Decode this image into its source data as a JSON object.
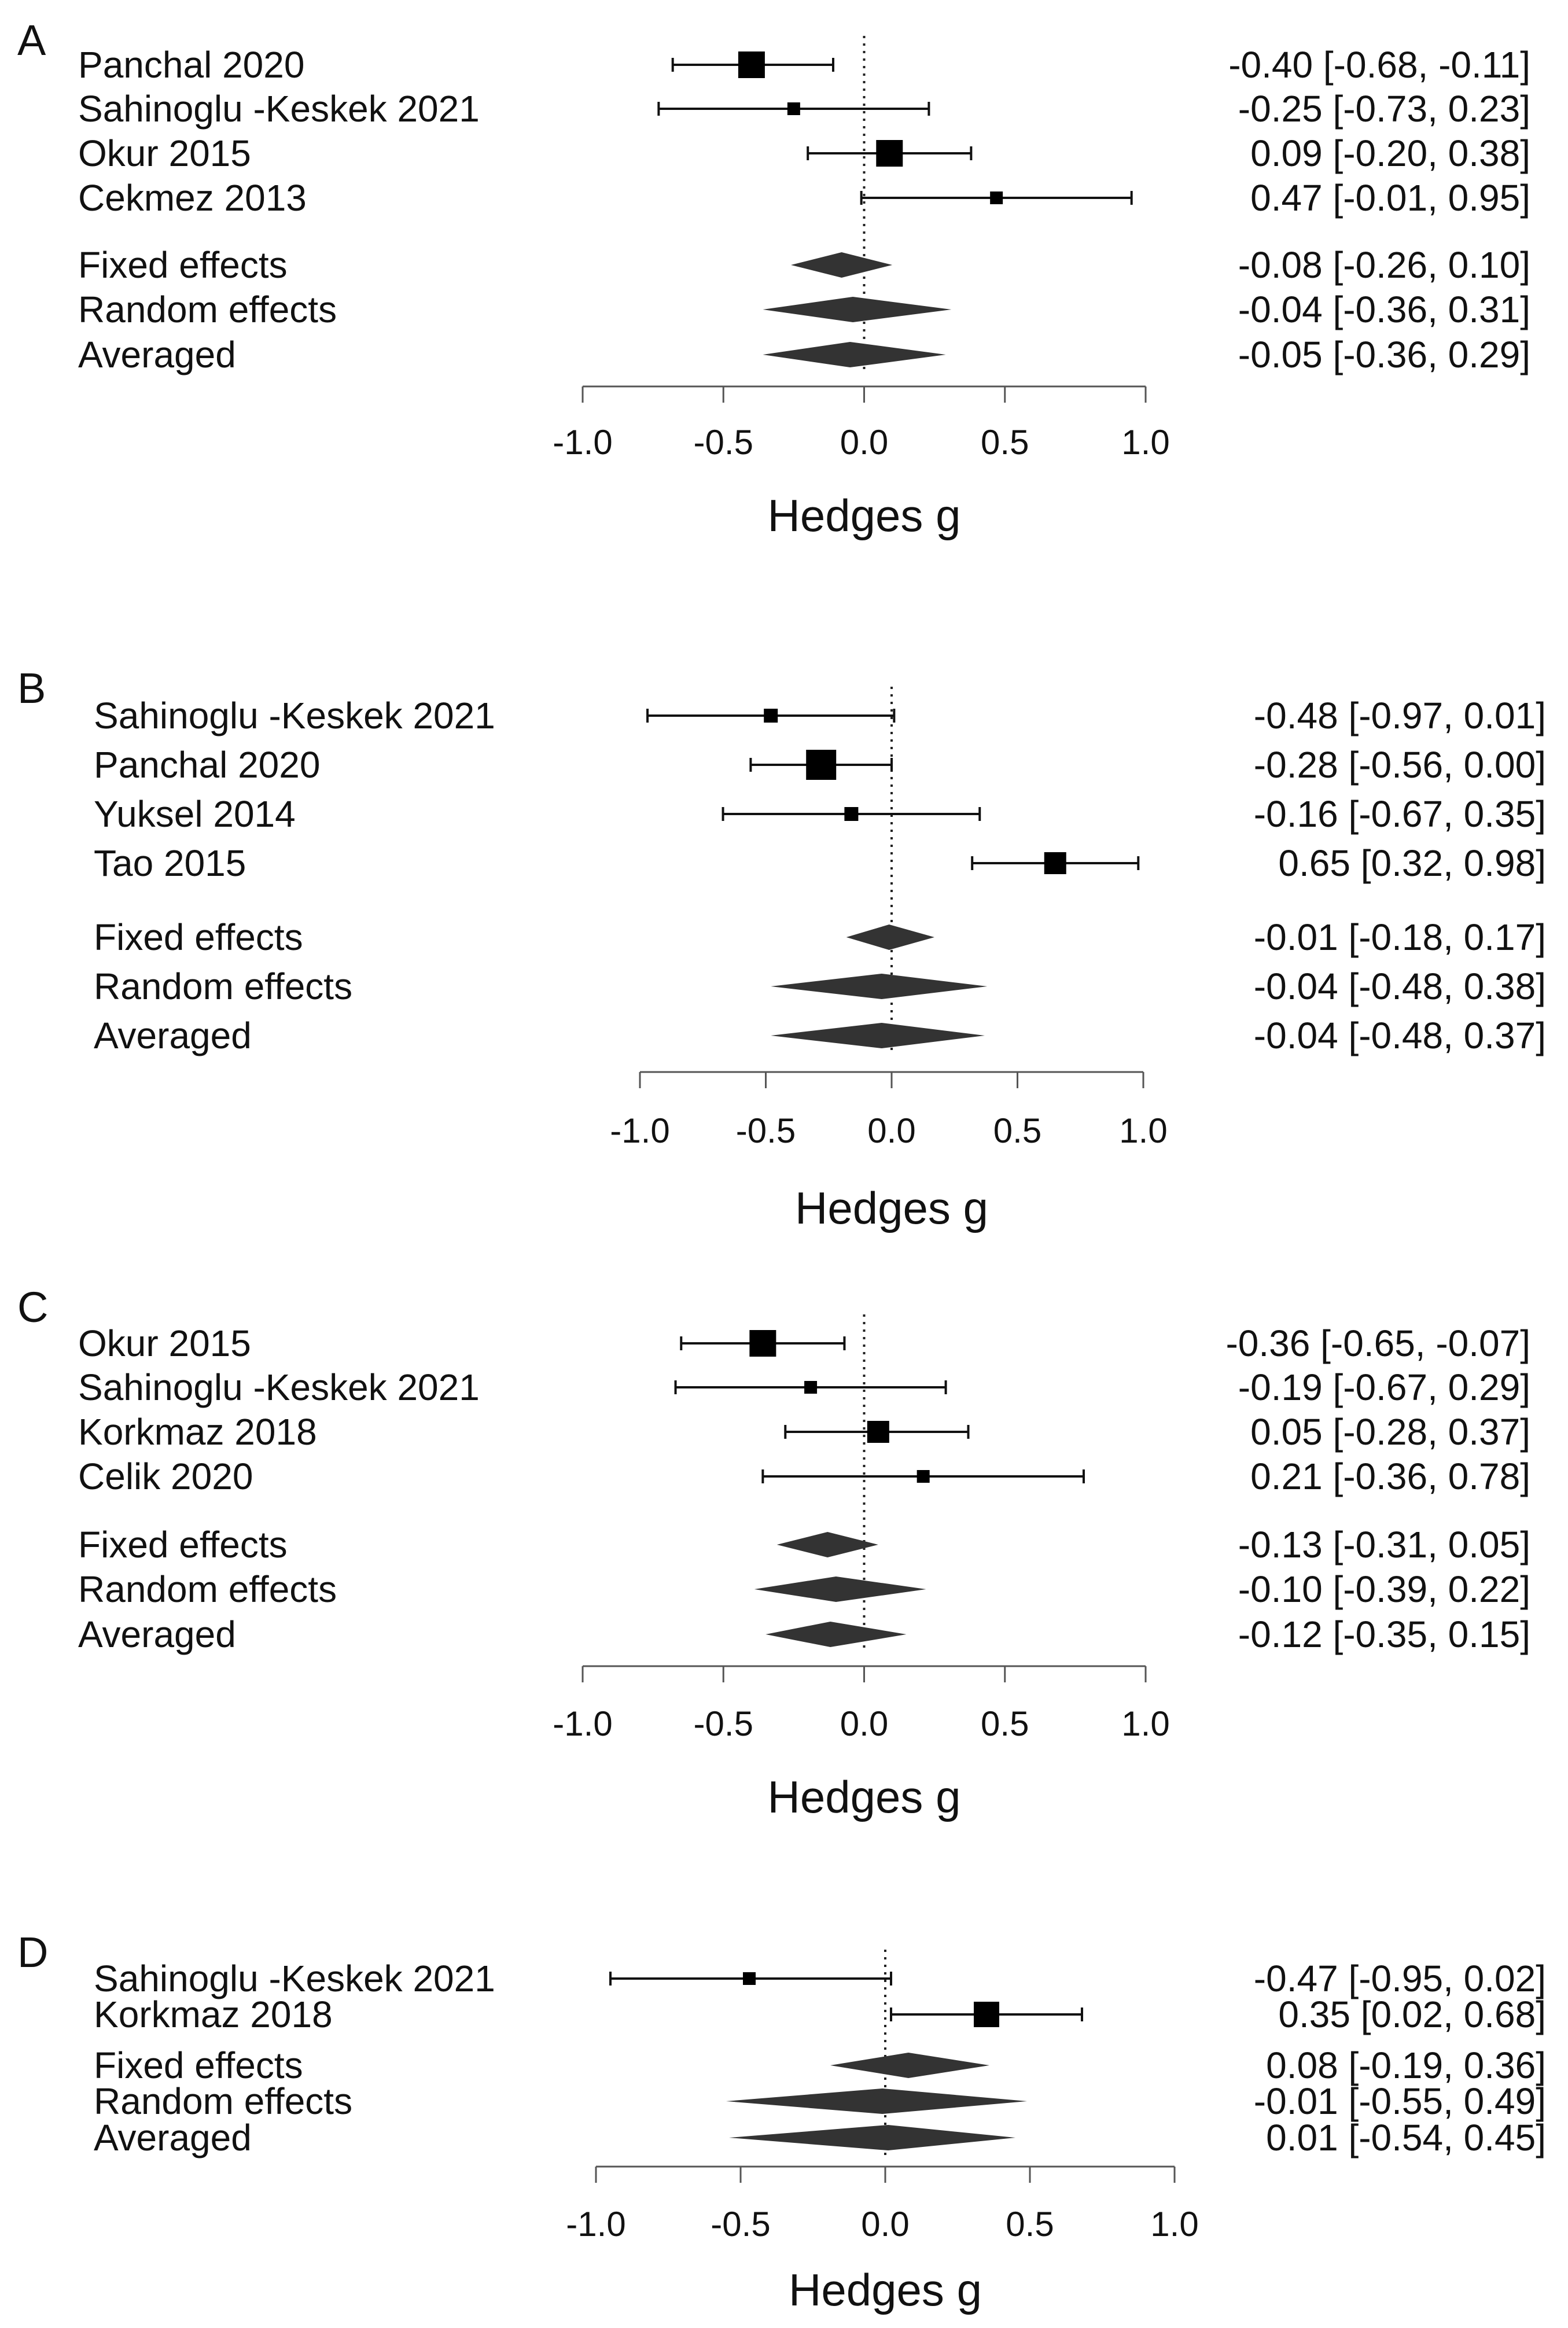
{
  "chart_data": [
    {
      "panel": "A",
      "type": "forest",
      "xlabel": "Hedges g",
      "xlim": [
        -1.0,
        1.0
      ],
      "ticks": [
        -1.0,
        -0.5,
        0.0,
        0.5,
        1.0
      ],
      "tick_labels": [
        "-1.0",
        "-0.5",
        "0.0",
        "0.5",
        "1.0"
      ],
      "studies": [
        {
          "label": "Panchal 2020",
          "estimate": -0.4,
          "lower": -0.68,
          "upper": -0.11,
          "ci_text": "-0.40 [-0.68, -0.11]",
          "weight": "large"
        },
        {
          "label": "Sahinoglu -Keskek 2021",
          "estimate": -0.25,
          "lower": -0.73,
          "upper": 0.23,
          "ci_text": "-0.25 [-0.73, 0.23]",
          "weight": "small"
        },
        {
          "label": "Okur 2015",
          "estimate": 0.09,
          "lower": -0.2,
          "upper": 0.38,
          "ci_text": "0.09 [-0.20, 0.38]",
          "weight": "large"
        },
        {
          "label": "Cekmez 2013",
          "estimate": 0.47,
          "lower": -0.01,
          "upper": 0.95,
          "ci_text": "0.47 [-0.01, 0.95]",
          "weight": "small"
        }
      ],
      "summaries": [
        {
          "label": "Fixed effects",
          "estimate": -0.08,
          "lower": -0.26,
          "upper": 0.1,
          "ci_text": "-0.08 [-0.26, 0.10]"
        },
        {
          "label": "Random effects",
          "estimate": -0.04,
          "lower": -0.36,
          "upper": 0.31,
          "ci_text": "-0.04 [-0.36, 0.31]"
        },
        {
          "label": "Averaged",
          "estimate": -0.05,
          "lower": -0.36,
          "upper": 0.29,
          "ci_text": "-0.05 [-0.36, 0.29]"
        }
      ]
    },
    {
      "panel": "B",
      "type": "forest",
      "xlabel": "Hedges g",
      "xlim": [
        -1.0,
        1.0
      ],
      "ticks": [
        -1.0,
        -0.5,
        0.0,
        0.5,
        1.0
      ],
      "tick_labels": [
        "-1.0",
        "-0.5",
        "0.0",
        "0.5",
        "1.0"
      ],
      "studies": [
        {
          "label": "Sahinoglu -Keskek 2021",
          "estimate": -0.48,
          "lower": -0.97,
          "upper": 0.01,
          "ci_text": "-0.48 [-0.97, 0.01]",
          "weight": "small"
        },
        {
          "label": "Panchal 2020",
          "estimate": -0.28,
          "lower": -0.56,
          "upper": 0.0,
          "ci_text": "-0.28 [-0.56, 0.00]",
          "weight": "large"
        },
        {
          "label": "Yuksel 2014",
          "estimate": -0.16,
          "lower": -0.67,
          "upper": 0.35,
          "ci_text": "-0.16 [-0.67, 0.35]",
          "weight": "small"
        },
        {
          "label": "Tao 2015",
          "estimate": 0.65,
          "lower": 0.32,
          "upper": 0.98,
          "ci_text": "0.65 [0.32, 0.98]",
          "weight": "medium"
        }
      ],
      "summaries": [
        {
          "label": "Fixed effects",
          "estimate": -0.01,
          "lower": -0.18,
          "upper": 0.17,
          "ci_text": "-0.01 [-0.18, 0.17]"
        },
        {
          "label": "Random effects",
          "estimate": -0.04,
          "lower": -0.48,
          "upper": 0.38,
          "ci_text": "-0.04 [-0.48, 0.38]"
        },
        {
          "label": "Averaged",
          "estimate": -0.04,
          "lower": -0.48,
          "upper": 0.37,
          "ci_text": "-0.04 [-0.48, 0.37]"
        }
      ]
    },
    {
      "panel": "C",
      "type": "forest",
      "xlabel": "Hedges g",
      "xlim": [
        -1.0,
        1.0
      ],
      "ticks": [
        -1.0,
        -0.5,
        0.0,
        0.5,
        1.0
      ],
      "tick_labels": [
        "-1.0",
        "-0.5",
        "0.0",
        "0.5",
        "1.0"
      ],
      "studies": [
        {
          "label": "Okur 2015",
          "estimate": -0.36,
          "lower": -0.65,
          "upper": -0.07,
          "ci_text": "-0.36 [-0.65, -0.07]",
          "weight": "large"
        },
        {
          "label": "Sahinoglu -Keskek 2021",
          "estimate": -0.19,
          "lower": -0.67,
          "upper": 0.29,
          "ci_text": "-0.19 [-0.67, 0.29]",
          "weight": "small"
        },
        {
          "label": "Korkmaz 2018",
          "estimate": 0.05,
          "lower": -0.28,
          "upper": 0.37,
          "ci_text": "0.05 [-0.28, 0.37]",
          "weight": "medium"
        },
        {
          "label": "Celik 2020",
          "estimate": 0.21,
          "lower": -0.36,
          "upper": 0.78,
          "ci_text": "0.21 [-0.36, 0.78]",
          "weight": "small"
        }
      ],
      "summaries": [
        {
          "label": "Fixed effects",
          "estimate": -0.13,
          "lower": -0.31,
          "upper": 0.05,
          "ci_text": "-0.13 [-0.31, 0.05]"
        },
        {
          "label": "Random effects",
          "estimate": -0.1,
          "lower": -0.39,
          "upper": 0.22,
          "ci_text": "-0.10 [-0.39, 0.22]"
        },
        {
          "label": "Averaged",
          "estimate": -0.12,
          "lower": -0.35,
          "upper": 0.15,
          "ci_text": "-0.12 [-0.35, 0.15]"
        }
      ]
    },
    {
      "panel": "D",
      "type": "forest",
      "xlabel": "Hedges g",
      "xlim": [
        -1.0,
        1.0
      ],
      "ticks": [
        -1.0,
        -0.5,
        0.0,
        0.5,
        1.0
      ],
      "tick_labels": [
        "-1.0",
        "-0.5",
        "0.0",
        "0.5",
        "1.0"
      ],
      "studies": [
        {
          "label": "Sahinoglu -Keskek 2021",
          "estimate": -0.47,
          "lower": -0.95,
          "upper": 0.02,
          "ci_text": "-0.47 [-0.95, 0.02]",
          "weight": "small"
        },
        {
          "label": "Korkmaz 2018",
          "estimate": 0.35,
          "lower": 0.02,
          "upper": 0.68,
          "ci_text": "0.35 [0.02, 0.68]",
          "weight": "large"
        }
      ],
      "summaries": [
        {
          "label": "Fixed effects",
          "estimate": 0.08,
          "lower": -0.19,
          "upper": 0.36,
          "ci_text": "0.08 [-0.19, 0.36]"
        },
        {
          "label": "Random effects",
          "estimate": -0.01,
          "lower": -0.55,
          "upper": 0.49,
          "ci_text": "-0.01 [-0.55, 0.49]"
        },
        {
          "label": "Averaged",
          "estimate": 0.01,
          "lower": -0.54,
          "upper": 0.45,
          "ci_text": "0.01 [-0.54, 0.45]"
        }
      ]
    }
  ]
}
